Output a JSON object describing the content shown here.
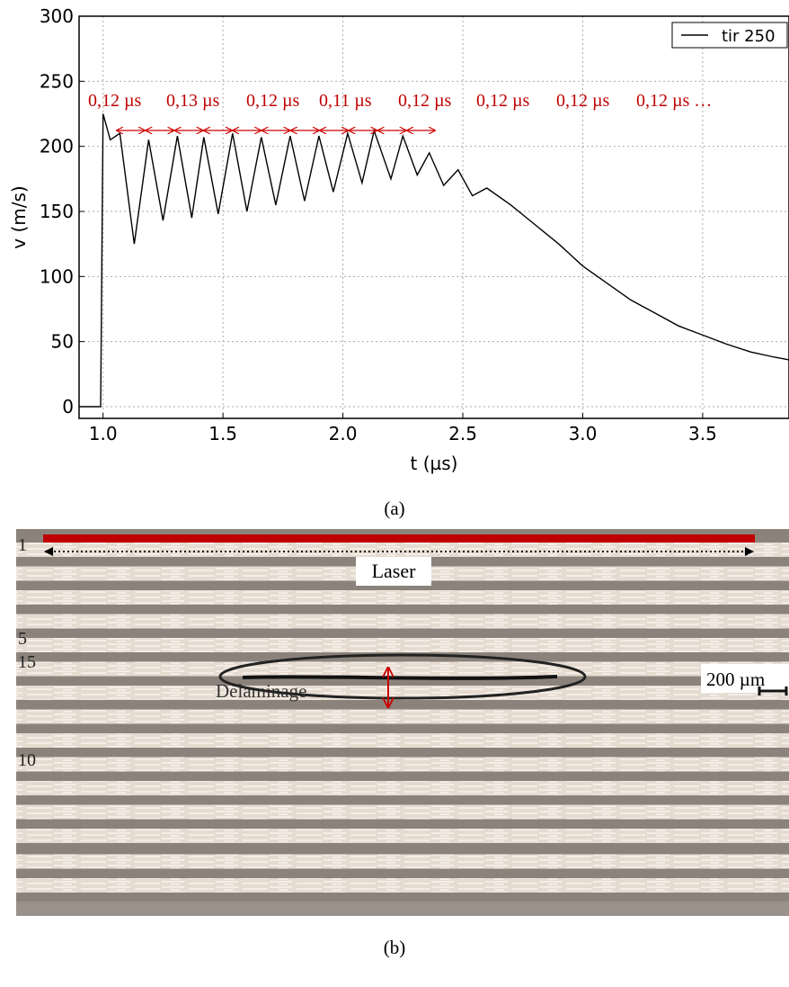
{
  "chart_data": {
    "type": "line",
    "x_label": "t (µs)",
    "y_label": "v (m/s)",
    "xlim": [
      0.9,
      3.86
    ],
    "ylim": [
      -9,
      300
    ],
    "xticks": [
      {
        "value": 1,
        "label": "1.0"
      },
      1.5,
      {
        "value": 2,
        "label": "2.0"
      },
      2.5,
      {
        "value": 3,
        "label": "3.0"
      },
      3.5
    ],
    "yticks": [
      0,
      50,
      100,
      150,
      200,
      250,
      300
    ],
    "grid": true,
    "legend": "upper right",
    "x": [
      0.9,
      0.99,
      1.0,
      1.03,
      1.07,
      1.13,
      1.19,
      1.25,
      1.31,
      1.37,
      1.42,
      1.48,
      1.54,
      1.6,
      1.66,
      1.72,
      1.78,
      1.84,
      1.9,
      1.96,
      2.02,
      2.08,
      2.13,
      2.2,
      2.25,
      2.31,
      2.36,
      2.42,
      2.48,
      2.54,
      2.6,
      2.7,
      2.8,
      2.9,
      3.0,
      3.1,
      3.2,
      3.3,
      3.4,
      3.5,
      3.6,
      3.7,
      3.8,
      3.86
    ],
    "series": [
      {
        "name": "tir 250",
        "color": "#000000",
        "values": [
          0,
          0,
          225,
          205,
          210,
          125,
          205,
          143,
          208,
          145,
          207,
          148,
          210,
          150,
          207,
          155,
          208,
          158,
          208,
          165,
          210,
          172,
          212,
          175,
          208,
          178,
          195,
          170,
          182,
          162,
          168,
          155,
          140,
          125,
          108,
          95,
          82,
          72,
          62,
          55,
          48,
          42,
          38,
          36
        ]
      }
    ],
    "annotations": [
      "0,12 µs",
      "0,13 µs",
      "0,12 µs",
      "0,11 µs",
      "0,12 µs",
      "0,12 µs",
      "0,12 µs",
      "0,12 µs …"
    ]
  },
  "captions": {
    "a": "(a)",
    "b": "(b)"
  },
  "micrograph": {
    "laser": "Laser",
    "delamination": "Délaminage",
    "scale": "200 µm",
    "ply_labels": [
      "1",
      "5",
      "10",
      "15"
    ]
  }
}
